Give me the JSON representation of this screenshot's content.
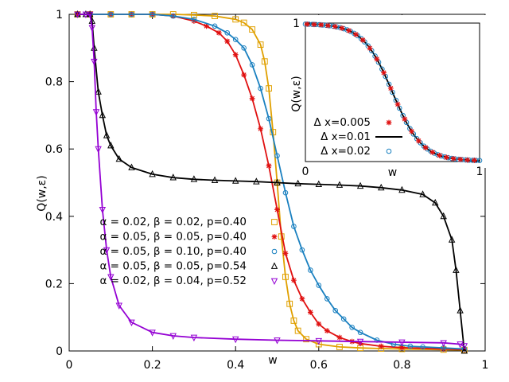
{
  "chart_data": [
    {
      "type": "line",
      "role": "main",
      "title": "",
      "xlabel": "w",
      "ylabel": "Q(w,ε)",
      "xlim": [
        0,
        1
      ],
      "ylim": [
        0,
        1
      ],
      "x_ticks": [
        "0",
        "0.2",
        "0.4",
        "0.6",
        "0.8",
        "1"
      ],
      "y_ticks": [
        "0",
        "0.2",
        "0.4",
        "0.6",
        "0.8",
        "1"
      ],
      "x_tick_values": [
        0,
        0.2,
        0.4,
        0.6,
        0.8,
        1
      ],
      "y_tick_values": [
        0,
        0.2,
        0.4,
        0.6,
        0.8,
        1
      ],
      "grid": false,
      "legend_position": "center-left",
      "series": [
        {
          "name": "α = 0.02,  β = 0.02, p=0.40",
          "color": "#e0a000",
          "marker": "square",
          "x": [
            0.02,
            0.05,
            0.1,
            0.15,
            0.2,
            0.25,
            0.3,
            0.35,
            0.4,
            0.42,
            0.44,
            0.46,
            0.47,
            0.48,
            0.49,
            0.5,
            0.51,
            0.52,
            0.53,
            0.54,
            0.55,
            0.57,
            0.6,
            0.65,
            0.7,
            0.75,
            0.8,
            0.9,
            0.95
          ],
          "y": [
            1,
            1,
            1,
            1,
            1,
            1,
            0.998,
            0.995,
            0.985,
            0.975,
            0.955,
            0.91,
            0.86,
            0.78,
            0.65,
            0.5,
            0.34,
            0.22,
            0.14,
            0.09,
            0.06,
            0.035,
            0.02,
            0.012,
            0.009,
            0.007,
            0.006,
            0.004,
            0.003
          ]
        },
        {
          "name": "α = 0.05,  β = 0.05, p=0.40",
          "color": "#e01010",
          "marker": "star",
          "x": [
            0.02,
            0.05,
            0.1,
            0.15,
            0.2,
            0.25,
            0.3,
            0.33,
            0.36,
            0.38,
            0.4,
            0.42,
            0.44,
            0.46,
            0.48,
            0.5,
            0.52,
            0.54,
            0.56,
            0.58,
            0.6,
            0.62,
            0.65,
            0.68,
            0.7,
            0.75,
            0.8,
            0.9,
            0.95
          ],
          "y": [
            1,
            1,
            1,
            1,
            1,
            0.995,
            0.98,
            0.965,
            0.945,
            0.92,
            0.88,
            0.82,
            0.75,
            0.66,
            0.55,
            0.42,
            0.29,
            0.21,
            0.155,
            0.115,
            0.08,
            0.06,
            0.04,
            0.028,
            0.022,
            0.014,
            0.01,
            0.006,
            0.004
          ]
        },
        {
          "name": "α = 0.05,  β = 0.10, p=0.40",
          "color": "#1a80c0",
          "marker": "circle",
          "x": [
            0.02,
            0.05,
            0.1,
            0.15,
            0.2,
            0.25,
            0.3,
            0.35,
            0.38,
            0.4,
            0.42,
            0.44,
            0.46,
            0.48,
            0.5,
            0.52,
            0.54,
            0.56,
            0.58,
            0.6,
            0.62,
            0.64,
            0.66,
            0.68,
            0.7,
            0.74,
            0.78,
            0.82,
            0.85,
            0.9,
            0.95
          ],
          "y": [
            1,
            1,
            1,
            1,
            1,
            0.995,
            0.985,
            0.965,
            0.945,
            0.925,
            0.9,
            0.85,
            0.78,
            0.69,
            0.58,
            0.47,
            0.37,
            0.3,
            0.24,
            0.195,
            0.155,
            0.12,
            0.095,
            0.07,
            0.055,
            0.032,
            0.02,
            0.014,
            0.012,
            0.009,
            0.006
          ]
        },
        {
          "name": "α = 0.05,  β = 0.05, p=0.54",
          "color": "#000000",
          "marker": "triangle",
          "x": [
            0.02,
            0.04,
            0.05,
            0.055,
            0.06,
            0.07,
            0.08,
            0.09,
            0.1,
            0.12,
            0.15,
            0.2,
            0.25,
            0.3,
            0.35,
            0.4,
            0.45,
            0.5,
            0.55,
            0.6,
            0.65,
            0.7,
            0.75,
            0.8,
            0.85,
            0.88,
            0.9,
            0.92,
            0.93,
            0.94,
            0.95
          ],
          "y": [
            1,
            1,
            1,
            0.98,
            0.9,
            0.77,
            0.7,
            0.64,
            0.61,
            0.57,
            0.545,
            0.525,
            0.515,
            0.51,
            0.507,
            0.505,
            0.503,
            0.5,
            0.497,
            0.495,
            0.493,
            0.49,
            0.485,
            0.478,
            0.465,
            0.44,
            0.4,
            0.33,
            0.24,
            0.12,
            0
          ]
        },
        {
          "name": "α = 0.02,  β = 0.04, p=0.52",
          "color": "#9400d3",
          "marker": "triangle-down",
          "x": [
            0.02,
            0.04,
            0.05,
            0.055,
            0.06,
            0.065,
            0.07,
            0.08,
            0.09,
            0.1,
            0.12,
            0.15,
            0.2,
            0.25,
            0.3,
            0.4,
            0.5,
            0.6,
            0.7,
            0.8,
            0.9,
            0.94,
            0.95
          ],
          "y": [
            1,
            1,
            1,
            0.96,
            0.86,
            0.71,
            0.6,
            0.42,
            0.3,
            0.22,
            0.135,
            0.085,
            0.055,
            0.045,
            0.04,
            0.035,
            0.032,
            0.03,
            0.028,
            0.026,
            0.024,
            0.02,
            0.015
          ]
        }
      ]
    },
    {
      "type": "line",
      "role": "inset",
      "xlabel": "w",
      "ylabel": "Q(w,ε)",
      "xlim": [
        0,
        1
      ],
      "ylim": [
        0,
        1
      ],
      "x_ticks": [
        "0",
        "1"
      ],
      "y_ticks": [
        "1"
      ],
      "legend_position": "bottom-left",
      "series": [
        {
          "name": "Δ x=0.005",
          "color": "#e01010",
          "marker": "star"
        },
        {
          "name": "Δ x=0.01",
          "color": "#000000",
          "marker": "line"
        },
        {
          "name": "Δ x=0.02",
          "color": "#1a80c0",
          "marker": "circle"
        }
      ],
      "curve": {
        "center": 0.5,
        "width": 0.085,
        "top": 0.995,
        "bottom": 0.005
      }
    }
  ]
}
